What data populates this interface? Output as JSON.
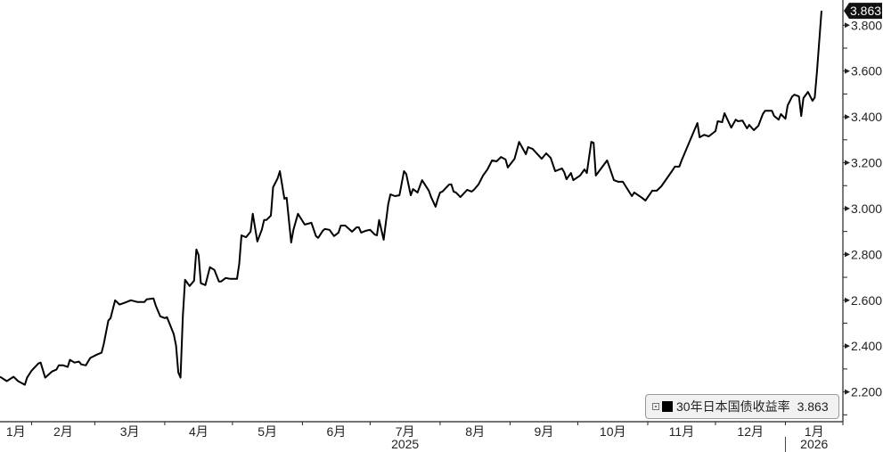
{
  "chart_data": {
    "type": "line",
    "title": "",
    "xlabel": "",
    "ylabel": "",
    "xlim": [
      "2025-01-18",
      "2026-01-26"
    ],
    "ylim": [
      2.07,
      3.91
    ],
    "y_axis_position": "right",
    "y_ticks": [
      "2.200",
      "2.400",
      "2.600",
      "2.800",
      "3.000",
      "3.200",
      "3.400",
      "3.600",
      "3.800"
    ],
    "x_month_ticks": [
      {
        "date": "2025-01-01",
        "label": "1月"
      },
      {
        "date": "2025-02-01",
        "label": "2月"
      },
      {
        "date": "2025-03-01",
        "label": "3月"
      },
      {
        "date": "2025-04-01",
        "label": "4月"
      },
      {
        "date": "2025-05-01",
        "label": "5月"
      },
      {
        "date": "2025-06-01",
        "label": "6月"
      },
      {
        "date": "2025-07-01",
        "label": "7月"
      },
      {
        "date": "2025-08-01",
        "label": "8月"
      },
      {
        "date": "2025-09-01",
        "label": "9月"
      },
      {
        "date": "2025-10-01",
        "label": "10月"
      },
      {
        "date": "2025-11-01",
        "label": "11月"
      },
      {
        "date": "2025-12-01",
        "label": "12月"
      },
      {
        "date": "2026-01-01",
        "label": "1月"
      }
    ],
    "x_year_labels": [
      {
        "label": "2025",
        "month_index": 6
      },
      {
        "label": "2026",
        "month_index": 12
      }
    ],
    "grid": false,
    "legend_position": "bottom-right",
    "line_color": "#000000",
    "last_value_label": "3.863",
    "series": [
      {
        "name": "30年日本国债收益率",
        "points": [
          [
            "2025-01-18",
            2.266
          ],
          [
            "2025-01-21",
            2.247
          ],
          [
            "2025-01-24",
            2.266
          ],
          [
            "2025-01-26",
            2.247
          ],
          [
            "2025-01-29",
            2.231
          ],
          [
            "2025-01-30",
            2.262
          ],
          [
            "2025-02-01",
            2.293
          ],
          [
            "2025-02-04",
            2.324
          ],
          [
            "2025-02-05",
            2.328
          ],
          [
            "2025-02-07",
            2.262
          ],
          [
            "2025-02-10",
            2.289
          ],
          [
            "2025-02-12",
            2.297
          ],
          [
            "2025-02-13",
            2.316
          ],
          [
            "2025-02-15",
            2.316
          ],
          [
            "2025-02-17",
            2.309
          ],
          [
            "2025-02-18",
            2.34
          ],
          [
            "2025-02-20",
            2.328
          ],
          [
            "2025-02-22",
            2.332
          ],
          [
            "2025-02-23",
            2.32
          ],
          [
            "2025-02-25",
            2.316
          ],
          [
            "2025-02-27",
            2.348
          ],
          [
            "2025-03-02",
            2.363
          ],
          [
            "2025-03-04",
            2.371
          ],
          [
            "2025-03-05",
            2.41
          ],
          [
            "2025-03-07",
            2.511
          ],
          [
            "2025-03-08",
            2.522
          ],
          [
            "2025-03-10",
            2.6
          ],
          [
            "2025-03-12",
            2.581
          ],
          [
            "2025-03-14",
            2.588
          ],
          [
            "2025-03-17",
            2.6
          ],
          [
            "2025-03-20",
            2.592
          ],
          [
            "2025-03-23",
            2.592
          ],
          [
            "2025-03-24",
            2.604
          ],
          [
            "2025-03-27",
            2.608
          ],
          [
            "2025-03-28",
            2.577
          ],
          [
            "2025-03-30",
            2.53
          ],
          [
            "2025-04-01",
            2.522
          ],
          [
            "2025-04-02",
            2.526
          ],
          [
            "2025-04-05",
            2.452
          ],
          [
            "2025-04-06",
            2.402
          ],
          [
            "2025-04-07",
            2.285
          ],
          [
            "2025-04-08",
            2.262
          ],
          [
            "2025-04-09",
            2.53
          ],
          [
            "2025-04-10",
            2.689
          ],
          [
            "2025-04-12",
            2.662
          ],
          [
            "2025-04-14",
            2.685
          ],
          [
            "2025-04-15",
            2.821
          ],
          [
            "2025-04-16",
            2.797
          ],
          [
            "2025-04-17",
            2.674
          ],
          [
            "2025-04-19",
            2.666
          ],
          [
            "2025-04-21",
            2.744
          ],
          [
            "2025-04-23",
            2.732
          ],
          [
            "2025-04-25",
            2.682
          ],
          [
            "2025-04-26",
            2.682
          ],
          [
            "2025-04-28",
            2.697
          ],
          [
            "2025-04-30",
            2.693
          ],
          [
            "2025-05-03",
            2.693
          ],
          [
            "2025-05-04",
            2.759
          ],
          [
            "2025-05-05",
            2.883
          ],
          [
            "2025-05-07",
            2.875
          ],
          [
            "2025-05-09",
            2.899
          ],
          [
            "2025-05-10",
            2.977
          ],
          [
            "2025-05-12",
            2.856
          ],
          [
            "2025-05-14",
            2.907
          ],
          [
            "2025-05-15",
            2.95
          ],
          [
            "2025-05-16",
            2.95
          ],
          [
            "2025-05-18",
            2.969
          ],
          [
            "2025-05-19",
            3.093
          ],
          [
            "2025-05-21",
            3.132
          ],
          [
            "2025-05-22",
            3.163
          ],
          [
            "2025-05-24",
            3.043
          ],
          [
            "2025-05-25",
            3.047
          ],
          [
            "2025-05-27",
            2.852
          ],
          [
            "2025-05-28",
            2.907
          ],
          [
            "2025-05-30",
            2.977
          ],
          [
            "2025-06-02",
            2.93
          ],
          [
            "2025-06-05",
            2.938
          ],
          [
            "2025-06-07",
            2.88
          ],
          [
            "2025-06-08",
            2.872
          ],
          [
            "2025-06-10",
            2.903
          ],
          [
            "2025-06-11",
            2.911
          ],
          [
            "2025-06-13",
            2.907
          ],
          [
            "2025-06-15",
            2.88
          ],
          [
            "2025-06-17",
            2.895
          ],
          [
            "2025-06-18",
            2.926
          ],
          [
            "2025-06-20",
            2.926
          ],
          [
            "2025-06-23",
            2.899
          ],
          [
            "2025-06-25",
            2.918
          ],
          [
            "2025-06-26",
            2.918
          ],
          [
            "2025-06-27",
            2.895
          ],
          [
            "2025-06-29",
            2.903
          ],
          [
            "2025-07-01",
            2.907
          ],
          [
            "2025-07-03",
            2.887
          ],
          [
            "2025-07-04",
            2.883
          ],
          [
            "2025-07-05",
            2.95
          ],
          [
            "2025-07-07",
            2.864
          ],
          [
            "2025-07-09",
            3.019
          ],
          [
            "2025-07-10",
            3.062
          ],
          [
            "2025-07-12",
            3.054
          ],
          [
            "2025-07-14",
            3.058
          ],
          [
            "2025-07-16",
            3.163
          ],
          [
            "2025-07-17",
            3.151
          ],
          [
            "2025-07-19",
            3.058
          ],
          [
            "2025-07-20",
            3.085
          ],
          [
            "2025-07-22",
            3.07
          ],
          [
            "2025-07-24",
            3.124
          ],
          [
            "2025-07-27",
            3.078
          ],
          [
            "2025-07-28",
            3.05
          ],
          [
            "2025-07-30",
            3.008
          ],
          [
            "2025-07-31",
            3.043
          ],
          [
            "2025-08-01",
            3.07
          ],
          [
            "2025-08-02",
            3.074
          ],
          [
            "2025-08-05",
            3.105
          ],
          [
            "2025-08-06",
            3.105
          ],
          [
            "2025-08-07",
            3.074
          ],
          [
            "2025-08-08",
            3.07
          ],
          [
            "2025-08-10",
            3.05
          ],
          [
            "2025-08-13",
            3.082
          ],
          [
            "2025-08-15",
            3.074
          ],
          [
            "2025-08-16",
            3.082
          ],
          [
            "2025-08-18",
            3.105
          ],
          [
            "2025-08-20",
            3.144
          ],
          [
            "2025-08-22",
            3.171
          ],
          [
            "2025-08-24",
            3.21
          ],
          [
            "2025-08-26",
            3.206
          ],
          [
            "2025-08-28",
            3.225
          ],
          [
            "2025-08-30",
            3.214
          ],
          [
            "2025-08-31",
            3.179
          ],
          [
            "2025-09-03",
            3.217
          ],
          [
            "2025-09-05",
            3.291
          ],
          [
            "2025-09-08",
            3.237
          ],
          [
            "2025-09-09",
            3.268
          ],
          [
            "2025-09-11",
            3.26
          ],
          [
            "2025-09-15",
            3.217
          ],
          [
            "2025-09-17",
            3.241
          ],
          [
            "2025-09-19",
            3.221
          ],
          [
            "2025-09-21",
            3.163
          ],
          [
            "2025-09-24",
            3.175
          ],
          [
            "2025-09-25",
            3.159
          ],
          [
            "2025-09-26",
            3.128
          ],
          [
            "2025-09-28",
            3.155
          ],
          [
            "2025-09-29",
            3.124
          ],
          [
            "2025-10-02",
            3.144
          ],
          [
            "2025-10-04",
            3.171
          ],
          [
            "2025-10-05",
            3.155
          ],
          [
            "2025-10-07",
            3.291
          ],
          [
            "2025-10-08",
            3.287
          ],
          [
            "2025-10-09",
            3.144
          ],
          [
            "2025-10-14",
            3.21
          ],
          [
            "2025-10-17",
            3.124
          ],
          [
            "2025-10-19",
            3.117
          ],
          [
            "2025-10-21",
            3.117
          ],
          [
            "2025-10-22",
            3.101
          ],
          [
            "2025-10-25",
            3.054
          ],
          [
            "2025-10-26",
            3.07
          ],
          [
            "2025-10-29",
            3.05
          ],
          [
            "2025-10-31",
            3.035
          ],
          [
            "2025-11-03",
            3.078
          ],
          [
            "2025-11-05",
            3.078
          ],
          [
            "2025-11-07",
            3.097
          ],
          [
            "2025-11-12",
            3.167
          ],
          [
            "2025-11-13",
            3.183
          ],
          [
            "2025-11-15",
            3.183
          ],
          [
            "2025-11-16",
            3.21
          ],
          [
            "2025-11-23",
            3.373
          ],
          [
            "2025-11-24",
            3.311
          ],
          [
            "2025-11-26",
            3.322
          ],
          [
            "2025-11-28",
            3.315
          ],
          [
            "2025-12-01",
            3.338
          ],
          [
            "2025-12-02",
            3.381
          ],
          [
            "2025-12-04",
            3.377
          ],
          [
            "2025-12-05",
            3.416
          ],
          [
            "2025-12-08",
            3.353
          ],
          [
            "2025-12-10",
            3.388
          ],
          [
            "2025-12-11",
            3.381
          ],
          [
            "2025-12-13",
            3.384
          ],
          [
            "2025-12-15",
            3.35
          ],
          [
            "2025-12-16",
            3.365
          ],
          [
            "2025-12-18",
            3.342
          ],
          [
            "2025-12-20",
            3.361
          ],
          [
            "2025-12-22",
            3.412
          ],
          [
            "2025-12-23",
            3.427
          ],
          [
            "2025-12-26",
            3.427
          ],
          [
            "2025-12-27",
            3.404
          ],
          [
            "2025-12-29",
            3.388
          ],
          [
            "2025-12-30",
            3.412
          ],
          [
            "2026-01-01",
            3.392
          ],
          [
            "2026-01-02",
            3.45
          ],
          [
            "2026-01-04",
            3.489
          ],
          [
            "2026-01-05",
            3.497
          ],
          [
            "2026-01-07",
            3.489
          ],
          [
            "2026-01-08",
            3.404
          ],
          [
            "2026-01-09",
            3.482
          ],
          [
            "2026-01-11",
            3.509
          ],
          [
            "2026-01-13",
            3.47
          ],
          [
            "2026-01-14",
            3.485
          ],
          [
            "2026-01-15",
            3.598
          ],
          [
            "2026-01-17",
            3.863
          ]
        ]
      }
    ]
  },
  "legend": {
    "label": "30年日本国债收益率",
    "value": "3.863"
  }
}
